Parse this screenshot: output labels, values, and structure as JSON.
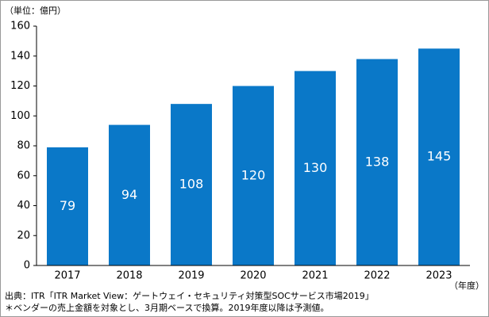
{
  "chart_data": {
    "type": "bar",
    "y_axis_label": "（単位：億円）",
    "x_axis_label": "（年度）",
    "categories": [
      "2017",
      "2018",
      "2019",
      "2020",
      "2021",
      "2022",
      "2023"
    ],
    "values": [
      79,
      94,
      108,
      120,
      130,
      138,
      145
    ],
    "color": "#0a78c8",
    "ylim": [
      0,
      160
    ],
    "yticks": [
      0,
      20,
      40,
      60,
      80,
      100,
      120,
      140,
      160
    ],
    "grid": false,
    "notes": [
      "出典：ITR「ITR Market View：ゲートウェイ・セキュリティ対策型SOCサービス市場2019」",
      "＊ベンダーの売上金額を対象とし、3月期ベースで換算。2019年度以降は予測値。"
    ]
  }
}
